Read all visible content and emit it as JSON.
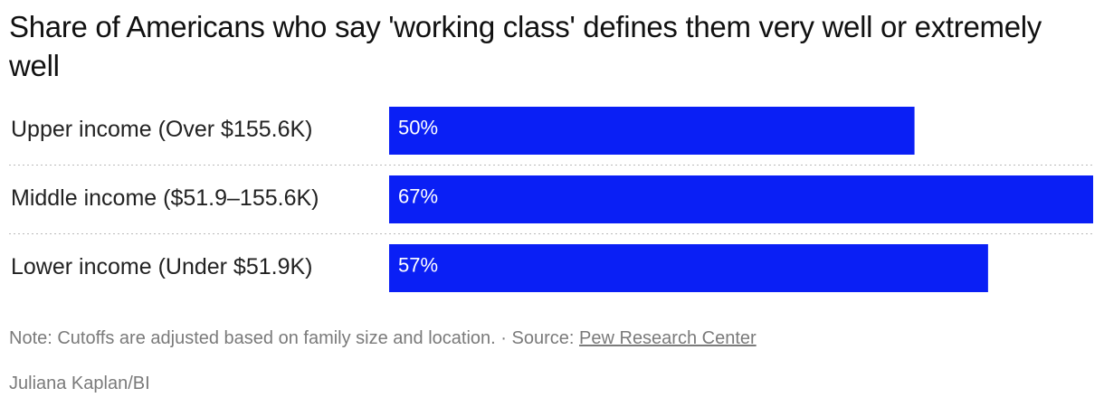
{
  "chart_data": {
    "type": "bar",
    "orientation": "horizontal",
    "title": "Share of Americans who say 'working class' defines them very well or extremely well",
    "categories": [
      "Upper income (Over $155.6K)",
      "Middle income ($51.9–155.6K)",
      "Lower income (Under $51.9K)"
    ],
    "values": [
      50,
      67,
      57
    ],
    "value_labels": [
      "50%",
      "67%",
      "57%"
    ],
    "color": "#0a1ff5",
    "note": "Note: Cutoffs are adjusted based on family size and location.",
    "separator": "·",
    "source_label": "Source:",
    "source": "Pew Research Center",
    "byline": "Juliana Kaplan/BI"
  }
}
